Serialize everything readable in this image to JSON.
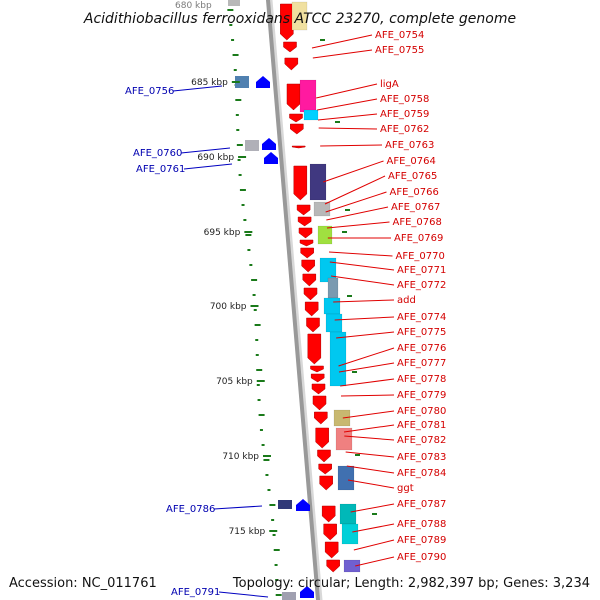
{
  "title": "Acidithiobacillus ferrooxidans ATCC 23270, complete genome",
  "top_tick_partial": "680 kbp",
  "accession": "Accession: NC_011761",
  "summary": "Topology: circular; Length: 2,982,397 bp; Genes: 3,234",
  "colors": {
    "forward_gene": "#ff0000",
    "reverse_gene": "#0000ff",
    "forward_label": "#d40000",
    "reverse_label": "#0000b0",
    "backbone": "#999999",
    "gc_skew": "#1a7a1a"
  },
  "ticks": [
    "685 kbp",
    "690 kbp",
    "695 kbp",
    "700 kbp",
    "705 kbp",
    "710 kbp",
    "715 kbp"
  ],
  "forward_labels": [
    "AFE_0754",
    "AFE_0755",
    "ligA",
    "AFE_0758",
    "AFE_0759",
    "AFE_0762",
    "AFE_0763",
    "AFE_0764",
    "AFE_0765",
    "AFE_0766",
    "AFE_0767",
    "AFE_0768",
    "AFE_0769",
    "AFE_0770",
    "AFE_0771",
    "AFE_0772",
    "add",
    "AFE_0774",
    "AFE_0775",
    "AFE_0776",
    "AFE_0777",
    "AFE_0778",
    "AFE_0779",
    "AFE_0780",
    "AFE_0781",
    "AFE_0782",
    "AFE_0783",
    "AFE_0784",
    "ggt",
    "AFE_0787",
    "AFE_0788",
    "AFE_0789",
    "AFE_0790"
  ],
  "reverse_labels": [
    "AFE_0756",
    "AFE_0760",
    "AFE_0761",
    "AFE_0786",
    "AFE_0791"
  ]
}
